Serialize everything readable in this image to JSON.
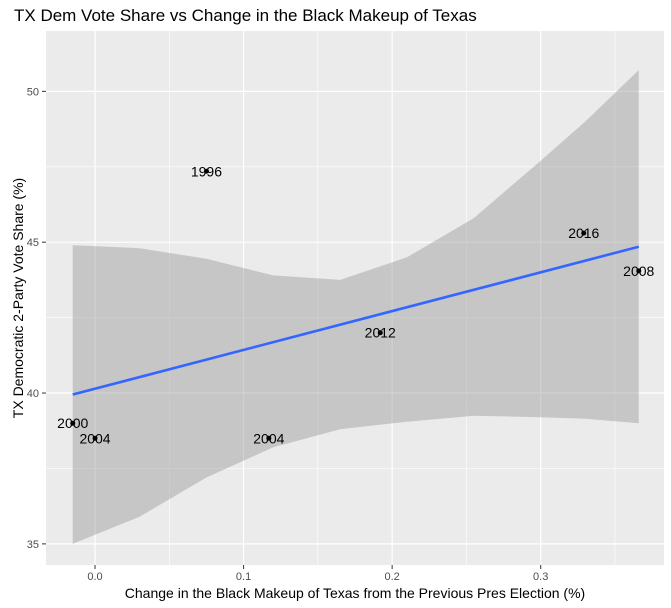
{
  "chart_data": {
    "type": "scatter",
    "title": "TX Dem Vote Share vs Change in the Black Makeup of Texas",
    "xlabel": "Change in the Black Makeup of Texas from the Previous Pres Election (%)",
    "ylabel": "TX Democratic 2-Party Vote Share (%)",
    "xlim": [
      -0.033,
      0.383
    ],
    "ylim": [
      34.3,
      52.0
    ],
    "x_ticks": [
      0.0,
      0.1,
      0.2,
      0.3
    ],
    "x_tick_labels": [
      "0.0",
      "0.1",
      "0.2",
      "0.3"
    ],
    "y_ticks": [
      35,
      40,
      45,
      50
    ],
    "y_tick_labels": [
      "35",
      "40",
      "45",
      "50"
    ],
    "grid": true,
    "points": [
      {
        "label": "1996",
        "x": 0.075,
        "y": 47.35
      },
      {
        "label": "2000",
        "x": -0.015,
        "y": 39.0
      },
      {
        "label": "2004",
        "x": 0.0,
        "y": 38.5
      },
      {
        "label": "2004",
        "x": 0.117,
        "y": 38.5
      },
      {
        "label": "2008",
        "x": 0.366,
        "y": 44.05
      },
      {
        "label": "2012",
        "x": 0.192,
        "y": 42.0
      },
      {
        "label": "2016",
        "x": 0.329,
        "y": 45.3
      }
    ],
    "fit_line": {
      "x": [
        -0.015,
        0.366
      ],
      "y": [
        39.95,
        44.85
      ],
      "color": "#3366ff"
    },
    "confidence_band": {
      "x": [
        -0.015,
        0.03,
        0.075,
        0.12,
        0.165,
        0.21,
        0.255,
        0.3,
        0.33,
        0.366
      ],
      "upper": [
        44.9,
        44.8,
        44.45,
        43.9,
        43.75,
        44.5,
        45.8,
        47.7,
        49.0,
        50.7
      ],
      "lower": [
        35.0,
        35.9,
        37.2,
        38.2,
        38.8,
        39.05,
        39.25,
        39.2,
        39.15,
        39.0
      ],
      "color": "#999999"
    },
    "colors": {
      "panel": "#ebebeb",
      "grid": "#ffffff",
      "point": "#000000"
    }
  }
}
